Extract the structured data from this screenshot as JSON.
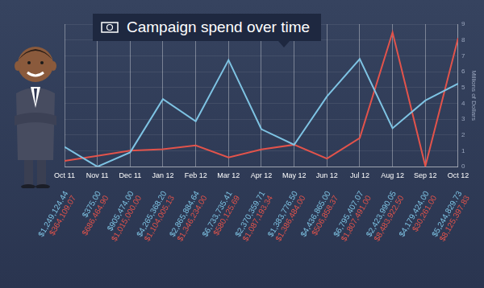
{
  "chart_data": {
    "type": "line",
    "title": "Campaign spend over time",
    "y_label": "Millions of Dollars",
    "categories": [
      "Oct 11",
      "Nov 11",
      "Dec 11",
      "Jan 12",
      "Feb 12",
      "Mar 12",
      "Apr 12",
      "May 12",
      "Jun 12",
      "Jul 12",
      "Aug 12",
      "Sep 12",
      "Oct 12"
    ],
    "series": [
      {
        "color": "#7ec3e3",
        "values": [
          1.24912444,
          0.000375,
          0.905474,
          4.2653682,
          2.86588464,
          6.73373541,
          2.37035971,
          1.3837765,
          4.436865,
          6.79540707,
          2.42399005,
          4.179424,
          5.24482973
        ],
        "value_labels": [
          "$1,249,124.44",
          "$375.00",
          "$905,474.00",
          "$4,265,368.20",
          "$2,865,884.64",
          "$6,733,735.41",
          "$2,370,359.71",
          "$1,383,776.50",
          "$4,436,865.00",
          "$6,795,407.07",
          "$2,423,990.05",
          "$4,179,424.00",
          "$5,244,829.73"
        ]
      },
      {
        "color": "#e2534b",
        "values": [
          0.36410907,
          0.6864649,
          1.015,
          1.10400513,
          1.346234,
          0.58012569,
          1.08719334,
          1.386484,
          0.50685837,
          1.807491,
          8.4839225,
          0.030261,
          8.12539783
        ],
        "value_labels": [
          "$364,109.07",
          "$686,464.90",
          "$1,015,000.00",
          "$1,104,005.13",
          "$1,346,234.00",
          "$580,125.69",
          "$1,087,193.34",
          "$1,386,484.00",
          "$506,858.37",
          "$1,807,491.00",
          "$8,483,922.50",
          "$30,261.00",
          "$8,125,397.83"
        ]
      }
    ],
    "ylim": [
      0,
      9
    ],
    "yticks": [
      0,
      1,
      2,
      3,
      4,
      5,
      6,
      7,
      8,
      9
    ],
    "grid": true
  }
}
